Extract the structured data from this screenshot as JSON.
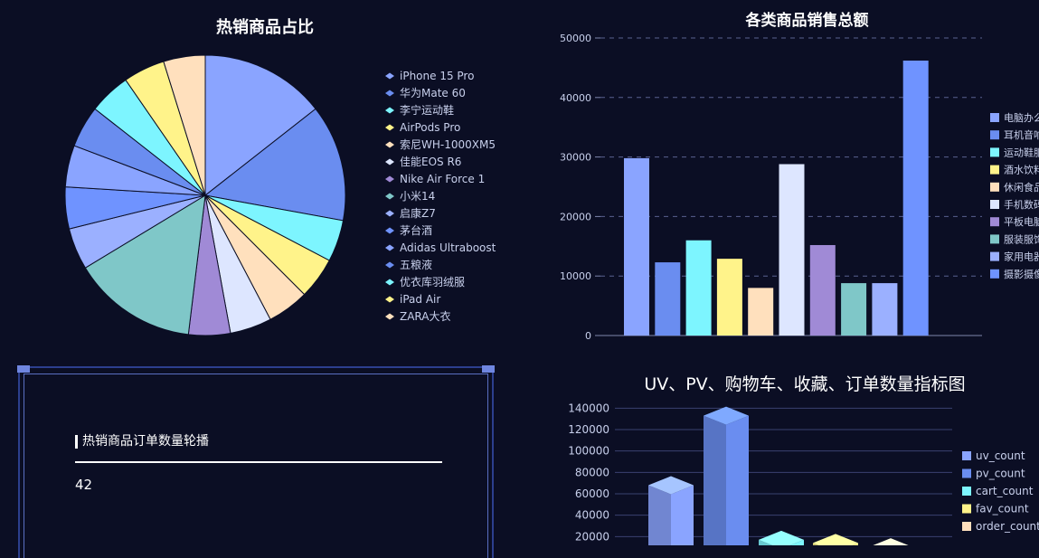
{
  "pie_panel": {
    "title": "热销商品占比"
  },
  "bar_panel": {
    "title": "各类商品销售总额"
  },
  "bar3d_panel": {
    "title": "UV、PV、购物车、收藏、订单数量指标图"
  },
  "carousel": {
    "title": "热销商品订单数量轮播",
    "value": "42"
  },
  "colors": {
    "background": "#0b0e24",
    "palette": [
      "#8aa4ff",
      "#6a8df0",
      "#7df5ff",
      "#fff38a",
      "#ffe0bd",
      "#dde6ff",
      "#a08ad6",
      "#7fc7c8",
      "#9bb0ff",
      "#6f93ff"
    ]
  },
  "chart_data": [
    {
      "type": "pie",
      "title": "热销商品占比",
      "legend_position": "right",
      "categories": [
        "iPhone 15 Pro",
        "华为Mate 60",
        "李宁运动鞋",
        "AirPods Pro",
        "索尼WH-1000XM5",
        "佳能EOS R6",
        "Nike Air Force 1",
        "小米14",
        "启康Z7",
        "茅台酒",
        "Adidas Ultraboost",
        "五粮液",
        "优衣库羽绒服",
        "iPad Air",
        "ZARA大衣"
      ],
      "values": [
        15,
        14,
        5,
        5,
        5,
        5,
        5,
        15,
        5,
        5,
        5,
        5,
        5,
        5,
        5
      ]
    },
    {
      "type": "bar",
      "title": "各类商品销售总额",
      "legend_position": "right",
      "categories": [
        "电脑办公",
        "耳机音响",
        "运动鞋服",
        "酒水饮料",
        "休闲食品",
        "手机数码",
        "平板电脑",
        "服装服饰",
        "家用电器",
        "摄影摄像"
      ],
      "legend_labels": [
        "电脑办么",
        "耳机音响",
        "运动鞋服",
        "酒水饮料",
        "休闲食品",
        "手机数码",
        "平板电脑",
        "服装服饰",
        "家用电器",
        "摄影摄像"
      ],
      "values": [
        29800,
        12300,
        16000,
        12900,
        8000,
        28800,
        15200,
        8800,
        8800,
        46200
      ],
      "ylim": [
        0,
        50000
      ],
      "yticks": [
        "0",
        "10000",
        "20000",
        "30000",
        "40000",
        "50000"
      ],
      "grid": true
    },
    {
      "type": "bar",
      "title": "UV、PV、购物车、收藏、订单数量指标图",
      "legend_position": "right",
      "categories": [
        "uv_count",
        "pv_count",
        "cart_count",
        "fav_count",
        "order_count"
      ],
      "values": [
        68000,
        133000,
        17000,
        14000,
        10000
      ],
      "ylim": [
        0,
        140000
      ],
      "yticks": [
        "20000",
        "40000",
        "60000",
        "80000",
        "100000",
        "120000",
        "140000"
      ],
      "grid": true
    }
  ]
}
